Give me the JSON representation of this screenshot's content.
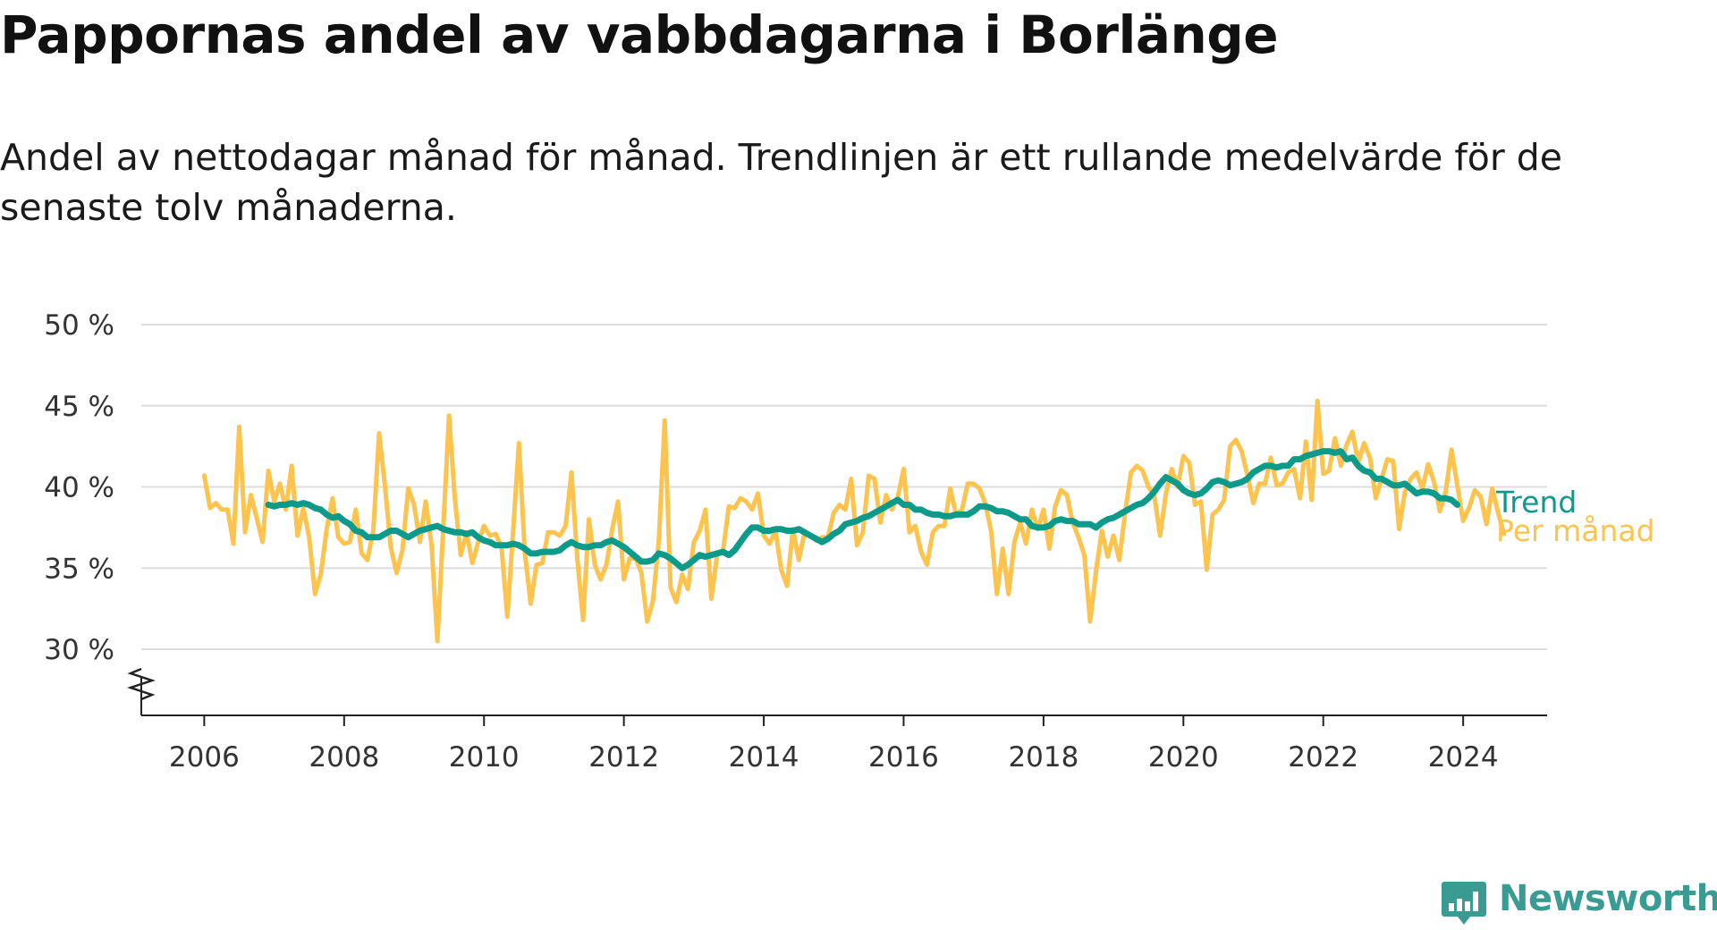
{
  "header": {
    "title": "Pappornas andel av vabbdagarna i Borlänge",
    "subtitle": "Andel av nettodagar månad för månad. Trendlinjen är ett rullande medelvärde för de senaste tolv månaderna."
  },
  "brand": {
    "name": "Newsworthy",
    "icon": "bar-chart-speech-bubble-icon",
    "color": "#3a9b93"
  },
  "colors": {
    "trend": "#0e9a8a",
    "monthly": "#fcc44e",
    "grid": "#dddddd",
    "axis": "#222222",
    "text": "#333333"
  },
  "chart_data": {
    "type": "line",
    "title": "Pappornas andel av vabbdagarna i Borlänge",
    "xlabel": "",
    "ylabel": "",
    "xlim": [
      2005.1,
      2025.2
    ],
    "ylim": [
      26,
      50
    ],
    "y_axis_break": true,
    "grid": "horizontal",
    "legend": "inline labels at line ends (right)",
    "x_ticks": [
      2006,
      2008,
      2010,
      2012,
      2014,
      2016,
      2018,
      2020,
      2022,
      2024
    ],
    "x_tick_labels": [
      "2006",
      "2008",
      "2010",
      "2012",
      "2014",
      "2016",
      "2018",
      "2020",
      "2022",
      "2024"
    ],
    "y_ticks": [
      30,
      35,
      40,
      45,
      50
    ],
    "y_tick_labels": [
      "30 %",
      "35 %",
      "40 %",
      "45 %",
      "50 %"
    ],
    "series": [
      {
        "name": "Per månad",
        "color": "#fcc44e",
        "x_start": "2006-01",
        "interval": "month",
        "values": [
          40.7,
          38.7,
          39.0,
          38.6,
          38.6,
          36.5,
          43.7,
          37.2,
          39.5,
          38.1,
          36.6,
          41.0,
          39.1,
          40.2,
          38.6,
          41.3,
          37.0,
          38.7,
          36.9,
          33.4,
          34.6,
          37.4,
          39.3,
          36.9,
          36.5,
          36.6,
          38.6,
          35.9,
          35.5,
          37.3,
          43.3,
          40.1,
          36.3,
          34.7,
          36.1,
          39.9,
          38.9,
          36.6,
          39.1,
          36.4,
          30.5,
          37.4,
          44.4,
          39.3,
          35.8,
          37.2,
          35.3,
          36.6,
          37.6,
          37.0,
          37.1,
          36.3,
          32.0,
          37.3,
          42.7,
          36.0,
          32.8,
          35.2,
          35.3,
          37.2,
          37.2,
          37.0,
          37.6,
          40.9,
          35.6,
          31.8,
          38.0,
          35.2,
          34.3,
          35.2,
          37.4,
          39.1,
          34.3,
          35.6,
          35.6,
          34.7,
          31.7,
          33.0,
          36.7,
          44.1,
          33.8,
          32.9,
          34.6,
          33.7,
          36.6,
          37.3,
          38.6,
          33.1,
          35.8,
          36.0,
          38.8,
          38.7,
          39.3,
          39.1,
          38.6,
          39.6,
          37.0,
          36.5,
          37.3,
          34.9,
          33.9,
          37.4,
          35.5,
          37.2,
          37.0,
          36.7,
          36.9,
          36.9,
          38.4,
          38.9,
          38.6,
          40.5,
          36.4,
          37.2,
          40.7,
          40.5,
          37.8,
          39.5,
          38.6,
          39.4,
          41.1,
          37.2,
          37.6,
          36.0,
          35.2,
          37.2,
          37.6,
          37.6,
          39.9,
          38.3,
          38.6,
          40.2,
          40.2,
          39.9,
          39.0,
          37.3,
          33.4,
          36.2,
          33.4,
          36.6,
          37.8,
          36.5,
          38.6,
          37.4,
          38.6,
          36.2,
          38.8,
          39.8,
          39.5,
          37.8,
          36.9,
          35.8,
          31.7,
          34.8,
          37.3,
          35.7,
          37.0,
          35.5,
          38.4,
          40.9,
          41.3,
          41.0,
          40.0,
          39.5,
          37.0,
          39.6,
          41.1,
          40.0,
          41.9,
          41.5,
          38.9,
          39.1,
          34.9,
          38.3,
          38.6,
          39.2,
          42.5,
          42.9,
          42.2,
          40.7,
          39.0,
          40.2,
          40.2,
          41.8,
          40.1,
          40.2,
          40.9,
          41.1,
          39.3,
          42.8,
          39.2,
          45.3,
          40.8,
          41.0,
          43.0,
          41.3,
          42.6,
          43.4,
          41.5,
          42.7,
          41.8,
          39.3,
          40.5,
          41.7,
          41.6,
          37.4,
          39.7,
          40.5,
          40.9,
          39.9,
          41.4,
          40.3,
          38.5,
          39.7,
          42.3,
          40.1,
          37.9,
          38.7,
          39.8,
          39.4,
          37.7,
          39.9,
          38.4,
          37.1
        ]
      },
      {
        "name": "Trend",
        "color": "#0e9a8a",
        "x_start": "2006-12",
        "interval": "month",
        "values": [
          38.9,
          38.8,
          38.9,
          38.9,
          39.0,
          38.9,
          39.0,
          38.9,
          38.7,
          38.6,
          38.3,
          38.1,
          38.2,
          37.9,
          37.7,
          37.3,
          37.2,
          36.9,
          36.9,
          36.9,
          37.1,
          37.3,
          37.3,
          37.1,
          36.9,
          37.1,
          37.3,
          37.4,
          37.5,
          37.6,
          37.4,
          37.3,
          37.2,
          37.2,
          37.1,
          37.2,
          36.9,
          36.7,
          36.6,
          36.4,
          36.4,
          36.4,
          36.5,
          36.4,
          36.2,
          35.9,
          35.9,
          36.0,
          36.0,
          36.0,
          36.1,
          36.4,
          36.6,
          36.4,
          36.3,
          36.3,
          36.4,
          36.4,
          36.6,
          36.7,
          36.5,
          36.3,
          36.0,
          35.7,
          35.4,
          35.4,
          35.5,
          35.9,
          35.8,
          35.6,
          35.3,
          35.0,
          35.2,
          35.5,
          35.8,
          35.7,
          35.8,
          35.9,
          36.0,
          35.8,
          36.1,
          36.6,
          37.1,
          37.5,
          37.5,
          37.3,
          37.3,
          37.4,
          37.4,
          37.3,
          37.3,
          37.4,
          37.2,
          37.0,
          36.8,
          36.6,
          36.8,
          37.1,
          37.3,
          37.7,
          37.8,
          37.9,
          38.1,
          38.2,
          38.4,
          38.6,
          38.8,
          39.0,
          39.2,
          38.9,
          38.9,
          38.6,
          38.6,
          38.4,
          38.3,
          38.3,
          38.2,
          38.2,
          38.3,
          38.3,
          38.3,
          38.5,
          38.8,
          38.8,
          38.7,
          38.5,
          38.5,
          38.4,
          38.2,
          38.0,
          38.0,
          37.6,
          37.5,
          37.5,
          37.6,
          37.9,
          38.0,
          37.9,
          37.9,
          37.7,
          37.7,
          37.7,
          37.5,
          37.8,
          38.0,
          38.1,
          38.3,
          38.5,
          38.7,
          38.9,
          39.0,
          39.3,
          39.7,
          40.2,
          40.6,
          40.4,
          40.2,
          39.8,
          39.6,
          39.5,
          39.6,
          39.9,
          40.3,
          40.4,
          40.3,
          40.1,
          40.2,
          40.3,
          40.5,
          40.9,
          41.1,
          41.3,
          41.3,
          41.2,
          41.3,
          41.3,
          41.7,
          41.7,
          41.9,
          42.0,
          42.1,
          42.2,
          42.2,
          42.1,
          42.2,
          41.7,
          41.8,
          41.3,
          41.0,
          40.9,
          40.5,
          40.5,
          40.3,
          40.1,
          40.1,
          40.2,
          39.9,
          39.6,
          39.7,
          39.7,
          39.6,
          39.3,
          39.3,
          39.2,
          38.9
        ]
      }
    ]
  }
}
